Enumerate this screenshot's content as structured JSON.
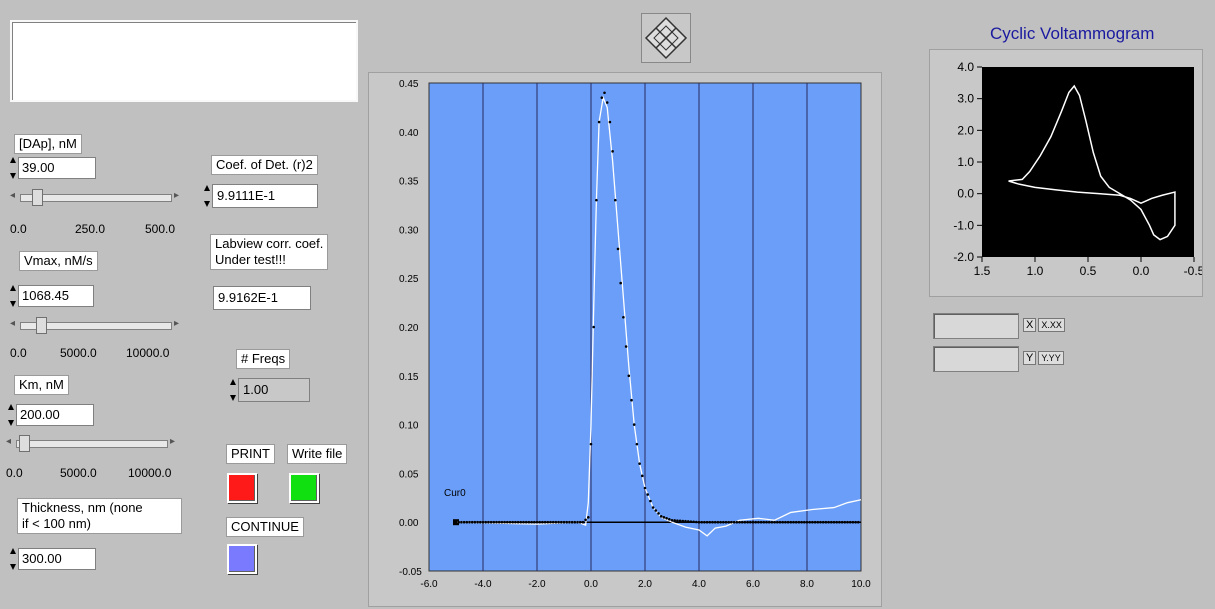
{
  "message_box": "",
  "controls": {
    "dap": {
      "label": "[DAp], nM",
      "value": "39.00",
      "scale": [
        "0.0",
        "250.0",
        "500.0"
      ],
      "fraction": 0.078
    },
    "vmax": {
      "label": "Vmax, nM/s",
      "value": "1068.45",
      "scale": [
        "0.0",
        "5000.0",
        "10000.0"
      ],
      "fraction": 0.107
    },
    "km": {
      "label": "Km, nM",
      "value": "200.00",
      "scale": [
        "0.0",
        "5000.0",
        "10000.0"
      ],
      "fraction": 0.02
    },
    "thickness": {
      "label": "Thickness, nm (none\n if < 100 nm)",
      "value": "300.00"
    }
  },
  "indicators": {
    "coef_det": {
      "label": "Coef. of Det. (r)2",
      "value": "9.9111E-1"
    },
    "labview_corr": {
      "label": "Labview corr. coef.\nUnder test!!!",
      "value": "9.9162E-1"
    },
    "freqs": {
      "label": "# Freqs",
      "value": "1.00"
    }
  },
  "buttons": {
    "print": {
      "label": "PRINT",
      "color": "#ff1a1a"
    },
    "write_file": {
      "label": "Write file",
      "color": "#10e010"
    },
    "continue": {
      "label": "CONTINUE",
      "color": "#7a7aff"
    }
  },
  "main_chart": {
    "cursor_label": "Cur0",
    "x_ticks": [
      "-6.0",
      "-4.0",
      "-2.0",
      "0.0",
      "2.0",
      "4.0",
      "6.0",
      "8.0",
      "10.0"
    ],
    "y_ticks": [
      "0.45",
      "0.40",
      "0.35",
      "0.30",
      "0.25",
      "0.20",
      "0.15",
      "0.10",
      "0.05",
      "0.00",
      "-0.05"
    ],
    "plot_bg": "#6a9ef8"
  },
  "cv_chart": {
    "title": "Cyclic Voltammogram",
    "x_ticks": [
      "1.5",
      "1.0",
      "0.5",
      "0.0",
      "-0.5"
    ],
    "y_ticks": [
      "4.0",
      "3.0",
      "2.0",
      "1.0",
      "0.0",
      "-1.0",
      "-2.0"
    ],
    "x_label_field": "X.XX",
    "y_label_field": "Y.YY",
    "x_axis_btn": "X",
    "y_axis_btn": "Y"
  },
  "chart_data": [
    {
      "type": "scatter",
      "title": "",
      "xlim": [
        -6,
        10
      ],
      "ylim": [
        -0.05,
        0.45
      ],
      "series": [
        {
          "values": [
            [
              -5,
              0
            ],
            [
              -3,
              0
            ],
            [
              -1,
              0
            ],
            [
              -0.3,
              0
            ],
            [
              -0.1,
              0.005
            ],
            [
              0.0,
              0.08
            ],
            [
              0.1,
              0.2
            ],
            [
              0.2,
              0.33
            ],
            [
              0.3,
              0.41
            ],
            [
              0.4,
              0.435
            ],
            [
              0.5,
              0.44
            ],
            [
              0.6,
              0.43
            ],
            [
              0.7,
              0.41
            ],
            [
              0.8,
              0.38
            ],
            [
              0.9,
              0.33
            ],
            [
              1.0,
              0.28
            ],
            [
              1.2,
              0.21
            ],
            [
              1.4,
              0.15
            ],
            [
              1.6,
              0.1
            ],
            [
              1.8,
              0.06
            ],
            [
              2.0,
              0.035
            ],
            [
              2.3,
              0.015
            ],
            [
              2.6,
              0.006
            ],
            [
              3,
              0.002
            ],
            [
              4,
              0
            ],
            [
              6,
              0
            ],
            [
              8,
              0
            ],
            [
              10,
              0
            ]
          ]
        },
        {
          "values": [
            [
              -5,
              0
            ],
            [
              -2,
              -0.002
            ],
            [
              -0.5,
              0
            ],
            [
              -0.2,
              -0.003
            ],
            [
              -0.1,
              0.02
            ],
            [
              0.0,
              0.1
            ],
            [
              0.1,
              0.22
            ],
            [
              0.2,
              0.33
            ],
            [
              0.3,
              0.41
            ],
            [
              0.45,
              0.435
            ],
            [
              0.6,
              0.425
            ],
            [
              0.8,
              0.37
            ],
            [
              1.0,
              0.3
            ],
            [
              1.2,
              0.23
            ],
            [
              1.4,
              0.16
            ],
            [
              1.6,
              0.1
            ],
            [
              1.8,
              0.06
            ],
            [
              2.0,
              0.035
            ],
            [
              2.3,
              0.015
            ],
            [
              2.6,
              0.005
            ],
            [
              3,
              0.0
            ],
            [
              3.5,
              -0.005
            ],
            [
              4,
              -0.008
            ],
            [
              4.3,
              -0.014
            ],
            [
              4.6,
              -0.006
            ],
            [
              5,
              -0.004
            ],
            [
              5.5,
              0.002
            ],
            [
              6.2,
              0.004
            ],
            [
              6.8,
              0.002
            ],
            [
              7.4,
              0.01
            ],
            [
              8.2,
              0.013
            ],
            [
              9,
              0.015
            ],
            [
              9.5,
              0.02
            ],
            [
              10,
              0.023
            ]
          ]
        }
      ]
    },
    {
      "type": "line",
      "title": "Cyclic Voltammogram",
      "xlim": [
        1.5,
        -0.5
      ],
      "ylim": [
        -2.0,
        4.0
      ],
      "series": [
        {
          "values": [
            [
              1.25,
              0.4
            ],
            [
              1.12,
              0.45
            ],
            [
              1.05,
              0.7
            ],
            [
              0.95,
              1.2
            ],
            [
              0.85,
              1.8
            ],
            [
              0.75,
              2.6
            ],
            [
              0.68,
              3.2
            ],
            [
              0.63,
              3.4
            ],
            [
              0.58,
              3.1
            ],
            [
              0.52,
              2.3
            ],
            [
              0.45,
              1.3
            ],
            [
              0.38,
              0.55
            ],
            [
              0.3,
              0.2
            ],
            [
              0.2,
              0.0
            ],
            [
              0.1,
              -0.2
            ],
            [
              0.0,
              -0.5
            ],
            [
              -0.08,
              -1.0
            ],
            [
              -0.12,
              -1.3
            ],
            [
              -0.18,
              -1.45
            ],
            [
              -0.25,
              -1.35
            ],
            [
              -0.32,
              -1.0
            ],
            [
              -0.32,
              0.05
            ],
            [
              -0.2,
              -0.05
            ],
            [
              -0.1,
              -0.15
            ],
            [
              0.0,
              -0.3
            ],
            [
              0.1,
              -0.15
            ],
            [
              0.2,
              -0.05
            ],
            [
              0.4,
              0.0
            ],
            [
              0.6,
              0.05
            ],
            [
              0.8,
              0.12
            ],
            [
              1.0,
              0.2
            ],
            [
              1.15,
              0.3
            ],
            [
              1.25,
              0.4
            ]
          ]
        }
      ]
    }
  ]
}
